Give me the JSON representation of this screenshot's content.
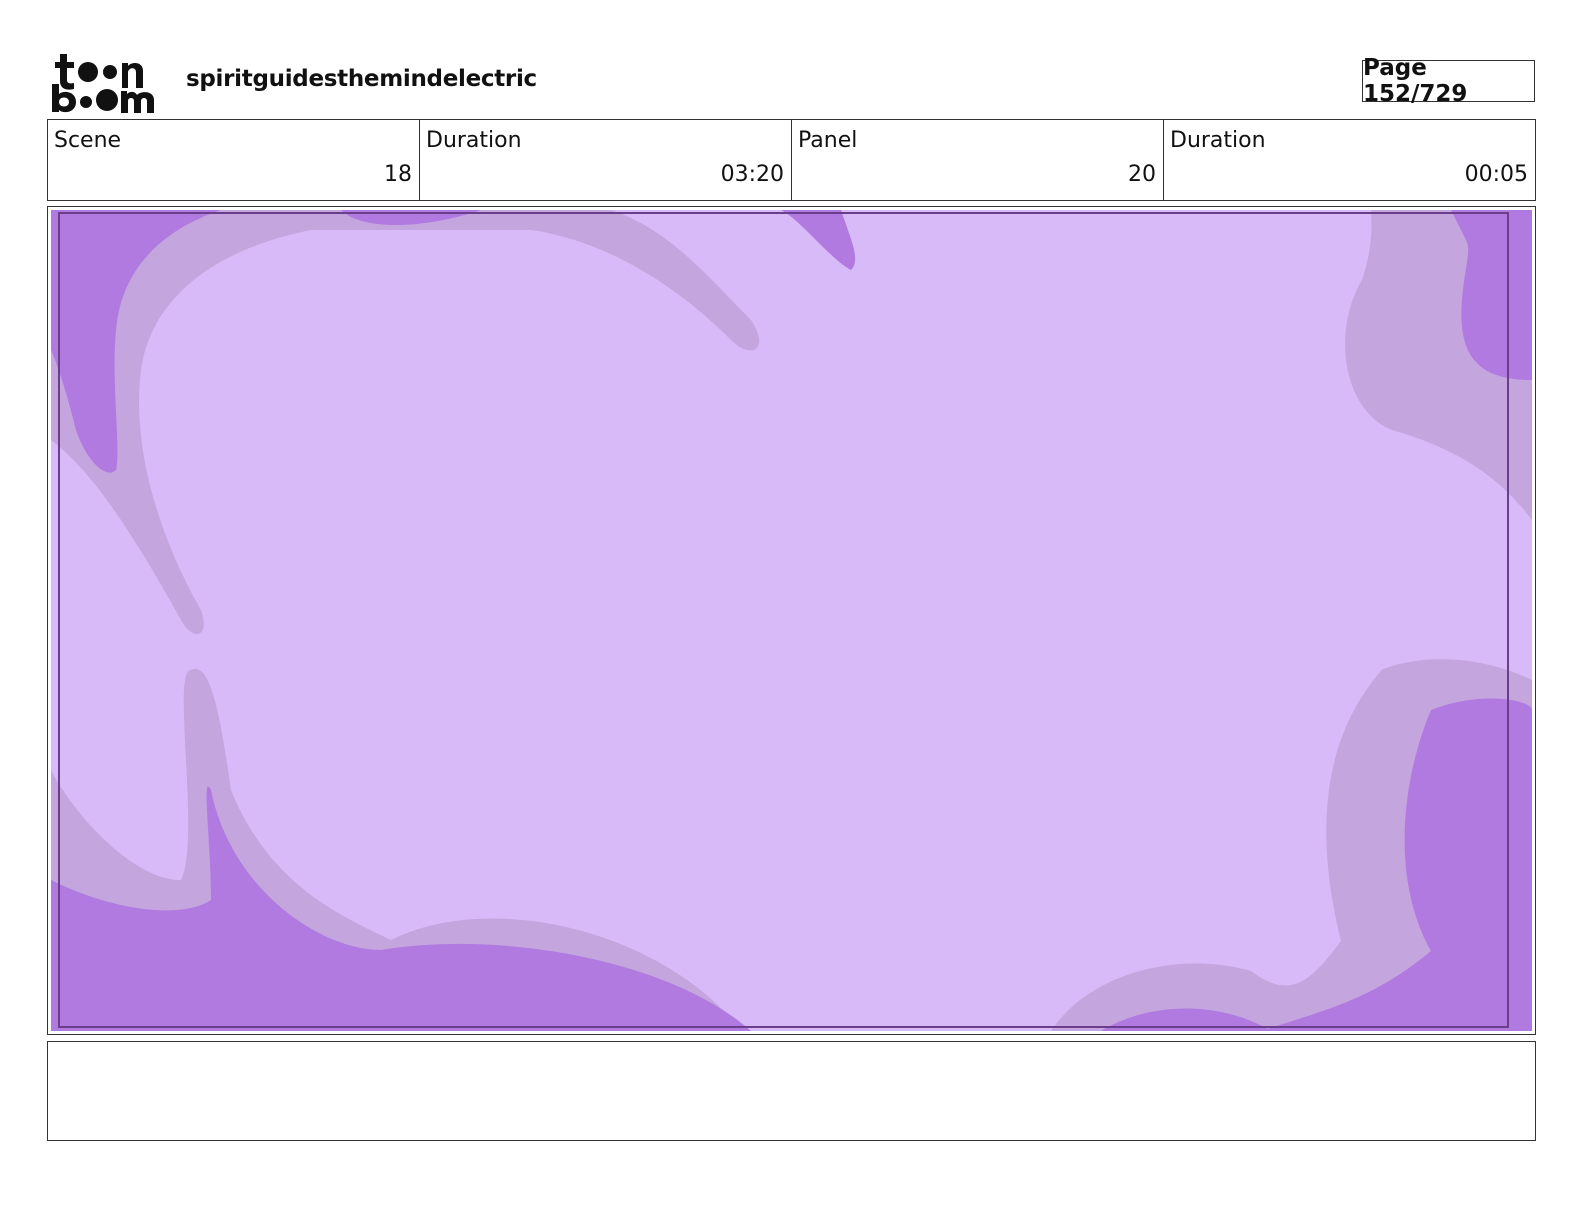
{
  "header": {
    "project": "spiritguidesthemindelectric",
    "page": "Page 152/729"
  },
  "info": [
    {
      "label": "Scene",
      "value": "18"
    },
    {
      "label": "Duration",
      "value": "03:20"
    },
    {
      "label": "Panel",
      "value": "20"
    },
    {
      "label": "Duration",
      "value": "00:05"
    }
  ]
}
